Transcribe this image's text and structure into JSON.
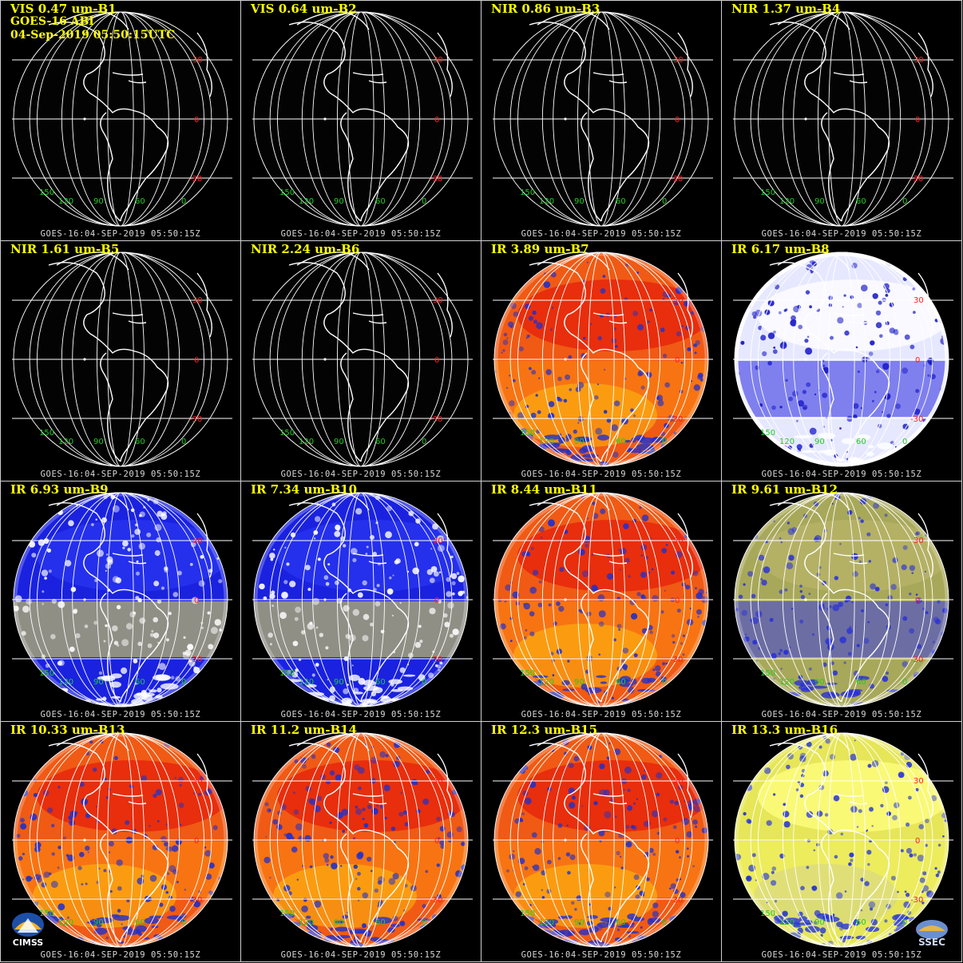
{
  "image": {
    "header_lines": [
      "GOES-16 ABI",
      "04-Sep-2019 05:50:15UTC"
    ],
    "footer_text": "GOES-16:04-SEP-2019 05:50:15Z",
    "lat_labels": [
      "30",
      "0",
      "-30"
    ],
    "lon_labels": [
      "150",
      "120",
      "90",
      "60",
      "0"
    ],
    "logos": [
      "CIMSS",
      "SSEC"
    ],
    "colors": {
      "label_yellow": "#ffff00",
      "grid_white": "#ffffff",
      "lat_label_red": "#ff2020",
      "lon_label_green": "#22cc22"
    }
  },
  "panels": [
    {
      "label": "VIS 0.47 um-B1",
      "style": "vis"
    },
    {
      "label": "VIS 0.64 um-B2",
      "style": "vis"
    },
    {
      "label": "NIR 0.86 um-B3",
      "style": "vis"
    },
    {
      "label": "NIR 1.37 um-B4",
      "style": "vis"
    },
    {
      "label": "NIR 1.61 um-B5",
      "style": "vis"
    },
    {
      "label": "NIR 2.24 um-B6",
      "style": "vis"
    },
    {
      "label": "IR 3.89 um-B7",
      "style": "ir-warm"
    },
    {
      "label": "IR 6.17 um-B8",
      "style": "wv-white"
    },
    {
      "label": "IR 6.93 um-B9",
      "style": "wv-blue"
    },
    {
      "label": "IR 7.34 um-B10",
      "style": "wv-blue"
    },
    {
      "label": "IR 8.44 um-B11",
      "style": "ir-warm"
    },
    {
      "label": "IR 9.61 um-B12",
      "style": "ir-olive"
    },
    {
      "label": "IR 10.33 um-B13",
      "style": "ir-warm"
    },
    {
      "label": "IR 11.2 um-B14",
      "style": "ir-warm"
    },
    {
      "label": "IR 12.3 um-B15",
      "style": "ir-warm"
    },
    {
      "label": "IR 13.3 um-B16",
      "style": "ir-yellow"
    }
  ]
}
